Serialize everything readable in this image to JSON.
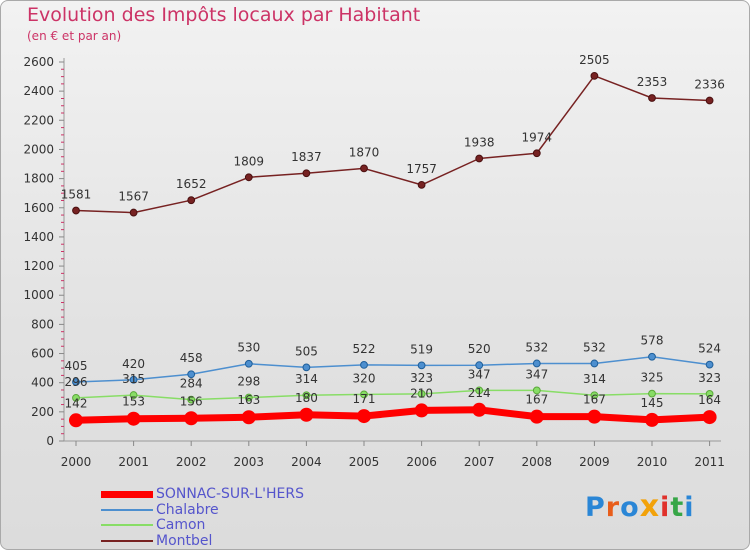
{
  "title": "Evolution des Impôts locaux par Habitant",
  "subtitle": "(en € et par an)",
  "logo": "Proxiti",
  "chart_data": {
    "type": "line",
    "title": "Evolution des Impôts locaux par Habitant",
    "subtitle": "(en € et par an)",
    "xlabel": "",
    "ylabel": "",
    "categories": [
      "2000",
      "2001",
      "2002",
      "2003",
      "2004",
      "2005",
      "2006",
      "2007",
      "2008",
      "2009",
      "2010",
      "2011"
    ],
    "ylim": [
      0,
      2600
    ],
    "yticks": [
      0,
      200,
      400,
      600,
      800,
      1000,
      1200,
      1400,
      1600,
      1800,
      2000,
      2200,
      2400,
      2600
    ],
    "grid": false,
    "legend_position": "bottom-left",
    "series": [
      {
        "name": "SONNAC-SUR-L'HERS",
        "color": "#ff0000",
        "values": [
          142,
          153,
          156,
          163,
          180,
          171,
          210,
          214,
          167,
          167,
          145,
          164
        ]
      },
      {
        "name": "Chalabre",
        "color": "#4d8fcf",
        "values": [
          405,
          420,
          458,
          530,
          505,
          522,
          519,
          520,
          532,
          532,
          578,
          524
        ]
      },
      {
        "name": "Camon",
        "color": "#88dd66",
        "values": [
          296,
          315,
          284,
          298,
          314,
          320,
          323,
          347,
          347,
          314,
          325,
          323
        ]
      },
      {
        "name": "Montbel",
        "color": "#772222",
        "values": [
          1581,
          1567,
          1652,
          1809,
          1837,
          1870,
          1757,
          1938,
          1974,
          2505,
          2353,
          2336
        ]
      }
    ]
  }
}
